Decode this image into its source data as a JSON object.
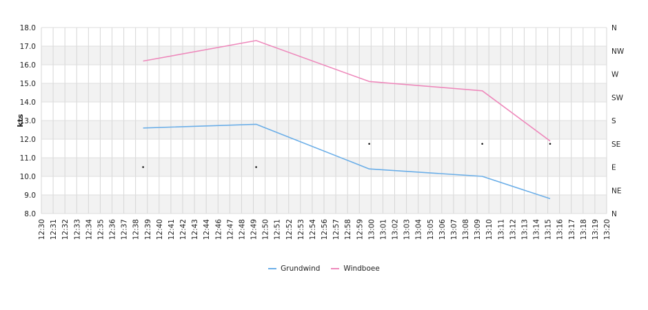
{
  "chart_data": {
    "type": "line",
    "ylabel": "kts",
    "ylim": [
      8.0,
      18.0
    ],
    "y_ticks": [
      "18.0",
      "17.0",
      "16.0",
      "15.0",
      "14.0",
      "13.0",
      "12.0",
      "11.0",
      "10.0",
      "9.0",
      "8.0"
    ],
    "y2_ticks": [
      "N",
      "NW",
      "W",
      "SW",
      "S",
      "SE",
      "E",
      "NE",
      "N"
    ],
    "x_ticks": [
      "12:30",
      "12:31",
      "12:32",
      "12:33",
      "12:34",
      "12:35",
      "12:36",
      "12:37",
      "12:38",
      "12:39",
      "12:40",
      "12:41",
      "12:42",
      "12:43",
      "12:44",
      "12:46",
      "12:47",
      "12:48",
      "12:49",
      "12:50",
      "12:51",
      "12:52",
      "12:53",
      "12:54",
      "12:56",
      "12:57",
      "12:58",
      "12:59",
      "13:00",
      "13:01",
      "13:02",
      "13:03",
      "13:04",
      "13:05",
      "13:06",
      "13:07",
      "13:08",
      "13:09",
      "13:10",
      "13:11",
      "13:12",
      "13:13",
      "13:14",
      "13:15",
      "13:16",
      "13:17",
      "13:18",
      "13:19",
      "13:20"
    ],
    "grid": true,
    "legend_position": "bottom",
    "series": [
      {
        "name": "Grundwind",
        "color": "#6aaee8",
        "points": [
          {
            "x": "12:39",
            "y": 12.6
          },
          {
            "x": "12:49",
            "y": 12.8
          },
          {
            "x": "12:59",
            "y": 10.4
          },
          {
            "x": "13:09",
            "y": 10.0
          },
          {
            "x": "13:15",
            "y": 8.8
          }
        ]
      },
      {
        "name": "Windboee",
        "color": "#ee88bb",
        "points": [
          {
            "x": "12:39",
            "y": 16.2
          },
          {
            "x": "12:49",
            "y": 17.3
          },
          {
            "x": "12:59",
            "y": 15.1
          },
          {
            "x": "13:09",
            "y": 14.6
          },
          {
            "x": "13:15",
            "y": 11.9
          }
        ]
      }
    ],
    "direction_markers": [
      {
        "x": "12:39",
        "direction": "E"
      },
      {
        "x": "12:49",
        "direction": "E"
      },
      {
        "x": "12:59",
        "direction": "SE"
      },
      {
        "x": "13:09",
        "direction": "SE"
      },
      {
        "x": "13:15",
        "direction": "SE"
      }
    ]
  }
}
